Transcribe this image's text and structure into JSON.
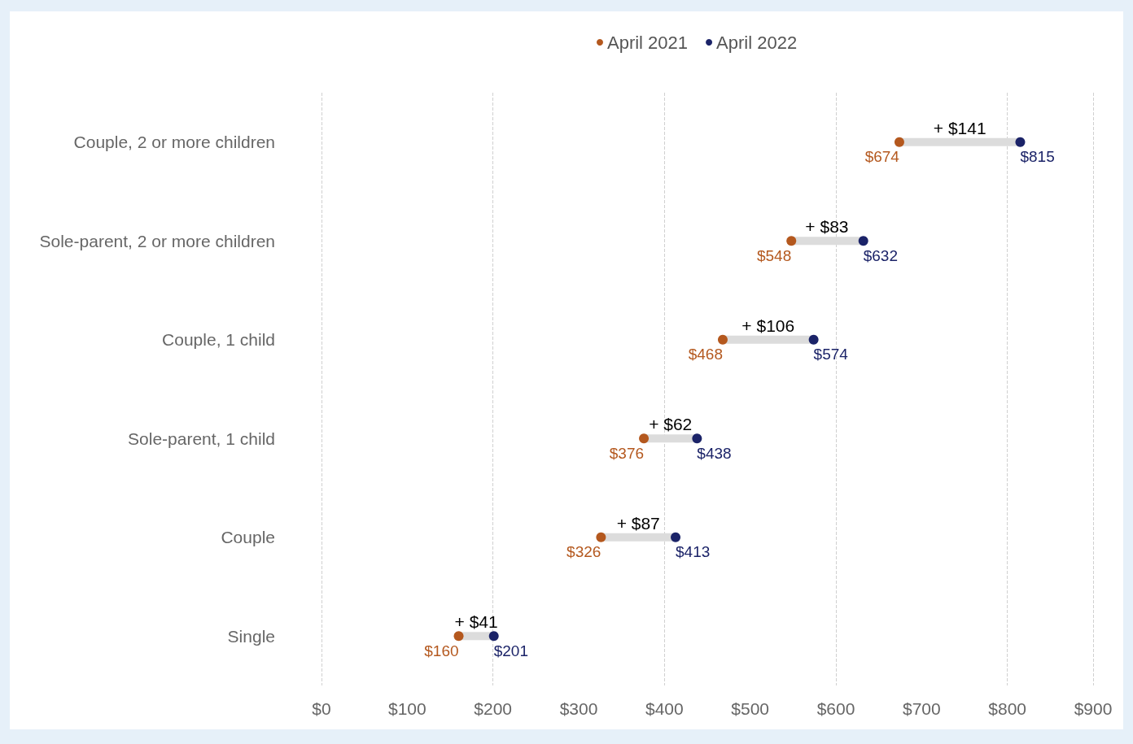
{
  "chart_data": {
    "type": "scatter",
    "orientation": "horizontal",
    "categories": [
      "Couple, 2 or more children",
      "Sole-parent, 2 or more children",
      "Couple, 1 child",
      "Sole-parent, 1 child",
      "Couple",
      "Single"
    ],
    "xlim": [
      0,
      900
    ],
    "xticks": [
      {
        "value": 0,
        "label": "$0"
      },
      {
        "value": 100,
        "label": "$100"
      },
      {
        "value": 200,
        "label": "$200"
      },
      {
        "value": 300,
        "label": "$300"
      },
      {
        "value": 400,
        "label": "$400"
      },
      {
        "value": 500,
        "label": "$500"
      },
      {
        "value": 600,
        "label": "$600"
      },
      {
        "value": 700,
        "label": "$700"
      },
      {
        "value": 800,
        "label": "$800"
      },
      {
        "value": 900,
        "label": "$900"
      }
    ],
    "grid": "x",
    "legend": "top",
    "marker": "circle",
    "series": [
      {
        "type": "bar",
        "color": "#dcdcdc",
        "base": [
          674,
          548,
          468,
          376,
          326,
          160
        ],
        "values": [
          141,
          83,
          106,
          62,
          87,
          41
        ],
        "value_labels": [
          "+ $141",
          "+ $83",
          "+ $106",
          "+ $62",
          "+ $87",
          "+ $41"
        ]
      },
      {
        "name": "April 2021",
        "color": "#b4581e",
        "values": [
          674,
          548,
          468,
          376,
          326,
          160
        ],
        "value_labels": [
          "$674",
          "$548",
          "$468",
          "$376",
          "$326",
          "$160"
        ]
      },
      {
        "name": "April 2022",
        "color": "#1b2368",
        "values": [
          815,
          632,
          574,
          438,
          413,
          201
        ],
        "value_labels": [
          "$815",
          "$632",
          "$574",
          "$438",
          "$413",
          "$201"
        ]
      }
    ]
  }
}
